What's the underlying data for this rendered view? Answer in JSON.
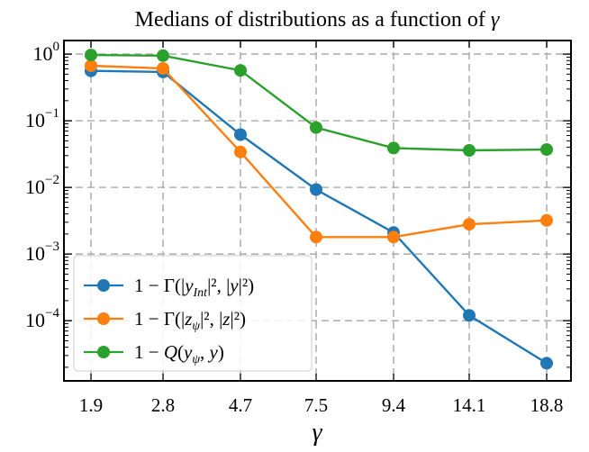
{
  "chart_data": {
    "type": "line",
    "title_text": "Medians of distributions as a function of ",
    "title_symbol": "γ",
    "xlabel": "γ",
    "ylabel": "",
    "y_scale": "log",
    "ylim": [
      1.25e-05,
      1.6
    ],
    "grid": true,
    "grid_style": "dashed",
    "legend_position": "lower-left",
    "categories": [
      "1.9",
      "2.8",
      "4.7",
      "7.5",
      "9.4",
      "14.1",
      "18.8"
    ],
    "y_ticks": [
      {
        "base": "10",
        "exp": "0",
        "value": 1
      },
      {
        "base": "10",
        "exp": "−1",
        "value": 0.1
      },
      {
        "base": "10",
        "exp": "−2",
        "value": 0.01
      },
      {
        "base": "10",
        "exp": "−3",
        "value": 0.001
      },
      {
        "base": "10",
        "exp": "−4",
        "value": 0.0001
      }
    ],
    "series": [
      {
        "name": "1 − Γ(|y_Int|², |y|²)",
        "color": "#1f77b4",
        "values": [
          0.56,
          0.54,
          0.062,
          0.0093,
          0.0021,
          0.00012,
          2.3e-05
        ]
      },
      {
        "name": "1 − Γ(|z_ψ|², |z|²)",
        "color": "#ff7f0e",
        "values": [
          0.67,
          0.61,
          0.034,
          0.0018,
          0.0018,
          0.0028,
          0.0032
        ]
      },
      {
        "name": "1 − Q(y_ψ, y)",
        "color": "#2ca02c",
        "values": [
          0.97,
          0.95,
          0.57,
          0.079,
          0.039,
          0.036,
          0.037
        ]
      }
    ],
    "legend": [
      {
        "prefix": "1 − Γ(|",
        "v1": "y",
        "sub1": "Int",
        "mid": "|², |",
        "v2": "y",
        "suffix": "|²)"
      },
      {
        "prefix": "1 − Γ(|",
        "v1": "z",
        "sub1": "ψ",
        "mid": "|², |",
        "v2": "z",
        "suffix": "|²)"
      },
      {
        "prefix": "1 − ",
        "v1": "Q",
        "open": "(",
        "v2": "y",
        "sub2": "ψ",
        "mid": ", ",
        "v3": "y",
        "suffix": ")"
      }
    ]
  }
}
